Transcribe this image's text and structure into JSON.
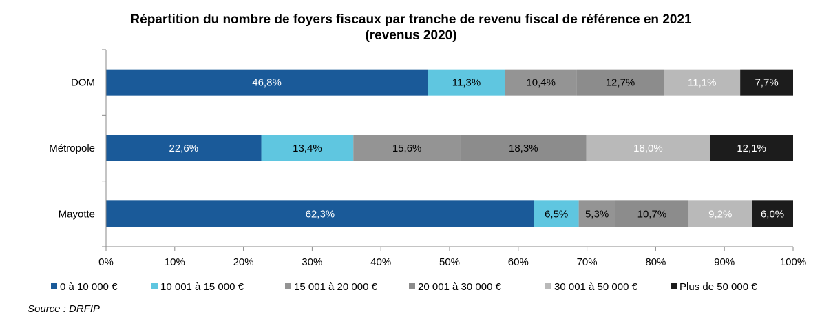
{
  "chart_data": {
    "type": "bar",
    "orientation": "horizontal",
    "stacked": true,
    "title": "Répartition du nombre de foyers fiscaux par tranche de revenu fiscal de référence en 2021",
    "subtitle": "(revenus 2020)",
    "categories": [
      "DOM",
      "Métropole",
      "Mayotte"
    ],
    "xlim": [
      0,
      100
    ],
    "x_ticks": [
      "0%",
      "10%",
      "20%",
      "30%",
      "40%",
      "50%",
      "60%",
      "70%",
      "80%",
      "90%",
      "100%"
    ],
    "grid": false,
    "legend_position": "bottom",
    "series": [
      {
        "name": "0 à 10 000 €",
        "color": "#1a5a99",
        "values": [
          46.8,
          22.6,
          62.3
        ],
        "labels": [
          "46,8%",
          "22,6%",
          "62,3%"
        ],
        "label_color": "#ffffff"
      },
      {
        "name": "10 001 à 15 000 €",
        "color": "#5fc6e0",
        "values": [
          11.3,
          13.4,
          6.5
        ],
        "labels": [
          "11,3%",
          "13,4%",
          "6,5%"
        ],
        "label_color": "#000000"
      },
      {
        "name": "15 001 à 20 000 €",
        "color": "#949494",
        "values": [
          10.4,
          15.6,
          5.3
        ],
        "labels": [
          "10,4%",
          "15,6%",
          "5,3%"
        ],
        "label_color": "#000000"
      },
      {
        "name": "20 001 à 30 000 €",
        "color": "#8c8c8c",
        "values": [
          12.7,
          18.3,
          10.7
        ],
        "labels": [
          "12,7%",
          "18,3%",
          "10,7%"
        ],
        "label_color": "#000000"
      },
      {
        "name": "30 001 à 50 000 €",
        "color": "#b9b9b9",
        "values": [
          11.1,
          18.0,
          9.2
        ],
        "labels": [
          "11,1%",
          "18,0%",
          "9,2%"
        ],
        "label_color": "#ffffff"
      },
      {
        "name": "Plus de 50 000 €",
        "color": "#1c1c1c",
        "values": [
          7.7,
          12.1,
          6.0
        ],
        "labels": [
          "7,7%",
          "12,1%",
          "6,0%"
        ],
        "label_color": "#ffffff"
      }
    ],
    "source": "Source : DRFIP"
  }
}
